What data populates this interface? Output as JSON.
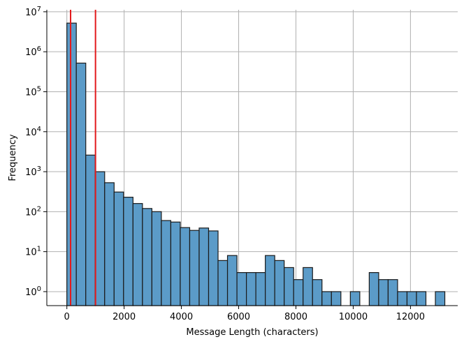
{
  "chart_data": {
    "type": "bar",
    "subtype": "histogram",
    "title": "",
    "xlabel": "Message Length (characters)",
    "ylabel": "Frequency",
    "yscale": "log",
    "xlim": [
      -700,
      13650
    ],
    "ylim_log10": [
      -0.35,
      7.05
    ],
    "grid": true,
    "legend": "none",
    "x_ticks": [
      0,
      2000,
      4000,
      6000,
      8000,
      10000,
      12000
    ],
    "x_tick_labels": [
      "0",
      "2000",
      "4000",
      "6000",
      "8000",
      "10000",
      "12000"
    ],
    "y_ticks_exp": [
      0,
      1,
      2,
      3,
      4,
      5,
      6,
      7
    ],
    "y_tick_base": "10",
    "bin_width": 330,
    "bins": [
      {
        "x0": 0,
        "count": 5200000
      },
      {
        "x0": 330,
        "count": 520000
      },
      {
        "x0": 660,
        "count": 2600
      },
      {
        "x0": 990,
        "count": 1000
      },
      {
        "x0": 1320,
        "count": 530
      },
      {
        "x0": 1650,
        "count": 310
      },
      {
        "x0": 1980,
        "count": 230
      },
      {
        "x0": 2310,
        "count": 160
      },
      {
        "x0": 2640,
        "count": 120
      },
      {
        "x0": 2970,
        "count": 100
      },
      {
        "x0": 3300,
        "count": 60
      },
      {
        "x0": 3630,
        "count": 55
      },
      {
        "x0": 3960,
        "count": 40
      },
      {
        "x0": 4290,
        "count": 34
      },
      {
        "x0": 4620,
        "count": 39
      },
      {
        "x0": 4950,
        "count": 33
      },
      {
        "x0": 5280,
        "count": 6
      },
      {
        "x0": 5610,
        "count": 8
      },
      {
        "x0": 5940,
        "count": 3
      },
      {
        "x0": 6270,
        "count": 3
      },
      {
        "x0": 6600,
        "count": 3
      },
      {
        "x0": 6930,
        "count": 8
      },
      {
        "x0": 7260,
        "count": 6
      },
      {
        "x0": 7590,
        "count": 4
      },
      {
        "x0": 7920,
        "count": 2
      },
      {
        "x0": 8250,
        "count": 4
      },
      {
        "x0": 8580,
        "count": 2
      },
      {
        "x0": 8910,
        "count": 1
      },
      {
        "x0": 9240,
        "count": 1
      },
      {
        "x0": 9900,
        "count": 1
      },
      {
        "x0": 10560,
        "count": 3
      },
      {
        "x0": 10890,
        "count": 2
      },
      {
        "x0": 11220,
        "count": 2
      },
      {
        "x0": 11550,
        "count": 1
      },
      {
        "x0": 11880,
        "count": 1
      },
      {
        "x0": 12210,
        "count": 1
      },
      {
        "x0": 12870,
        "count": 1
      }
    ],
    "vertical_lines": [
      {
        "x": 130,
        "color": "#e31a1c"
      },
      {
        "x": 1000,
        "color": "#e31a1c"
      }
    ],
    "colors": {
      "bar_fill": "#5b9bc8",
      "bar_edge": "#1a1a1a",
      "grid": "#b0b0b0"
    }
  }
}
